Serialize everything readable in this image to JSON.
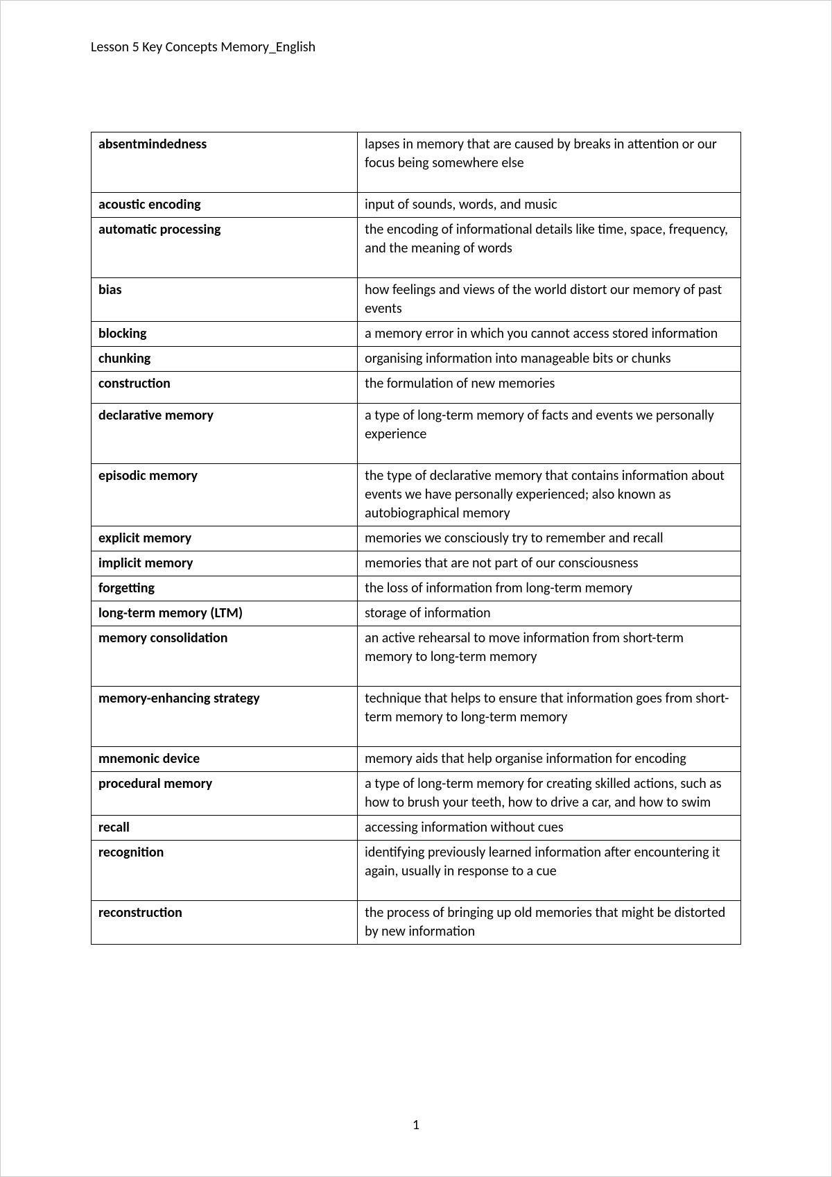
{
  "header": {
    "title": "Lesson 5 Key Concepts Memory_English"
  },
  "table": {
    "rows": [
      {
        "term": "absentmindedness",
        "definition": "lapses in memory that are caused by breaks in attention or our focus being somewhere else",
        "pad": "tall"
      },
      {
        "term": "acoustic encoding",
        "definition": "input of sounds, words, and music",
        "pad": "none"
      },
      {
        "term": "automatic processing",
        "definition": "the encoding of informational details like time, space, frequency, and the meaning of words",
        "pad": "tall"
      },
      {
        "term": "bias",
        "definition": "how feelings and views of the world distort our memory of past events",
        "pad": "none"
      },
      {
        "term": "blocking",
        "definition": "a memory error in which you cannot access stored information",
        "pad": "none"
      },
      {
        "term": "chunking",
        "definition": "organising information into manageable bits or chunks",
        "pad": "none"
      },
      {
        "term": "construction",
        "definition": "the formulation of new memories",
        "pad": "med"
      },
      {
        "term": "declarative memory",
        "definition": "a type of long-term memory of facts and events we personally experience",
        "pad": "tall"
      },
      {
        "term": "episodic memory",
        "definition": "the type of declarative memory that contains information about events we have personally experienced; also known as autobiographical memory",
        "pad": "none"
      },
      {
        "term": "explicit memory",
        "definition": "memories we consciously try to remember and recall",
        "pad": "none"
      },
      {
        "term": "implicit memory",
        "definition": "memories that are not part of our consciousness",
        "pad": "none"
      },
      {
        "term": "forgetting",
        "definition": "the loss of information from long-term memory",
        "pad": "none"
      },
      {
        "term": "long-term memory (LTM)",
        "definition": "storage of information",
        "pad": "none"
      },
      {
        "term": "memory consolidation",
        "definition": "an active rehearsal to move information from short-term memory to long-term memory",
        "pad": "tall"
      },
      {
        "term": "memory-enhancing strategy",
        "definition": "technique that helps to ensure that information goes from short-term memory to long-term memory",
        "pad": "tall"
      },
      {
        "term": "mnemonic device",
        "definition": "memory aids that help organise information for encoding",
        "pad": "none"
      },
      {
        "term": "procedural memory",
        "definition": "a type of long-term memory for creating skilled actions, such as how to brush your teeth, how to drive a car, and how to swim",
        "pad": "none"
      },
      {
        "term": "recall",
        "definition": "accessing information without cues",
        "pad": "none"
      },
      {
        "term": "recognition",
        "definition": "identifying previously learned information after encountering it again, usually in response to a cue",
        "pad": "tall"
      },
      {
        "term": "reconstruction",
        "definition": "the process of bringing up old memories that might be distorted by new information",
        "pad": "none"
      }
    ]
  },
  "pageNumber": "1"
}
